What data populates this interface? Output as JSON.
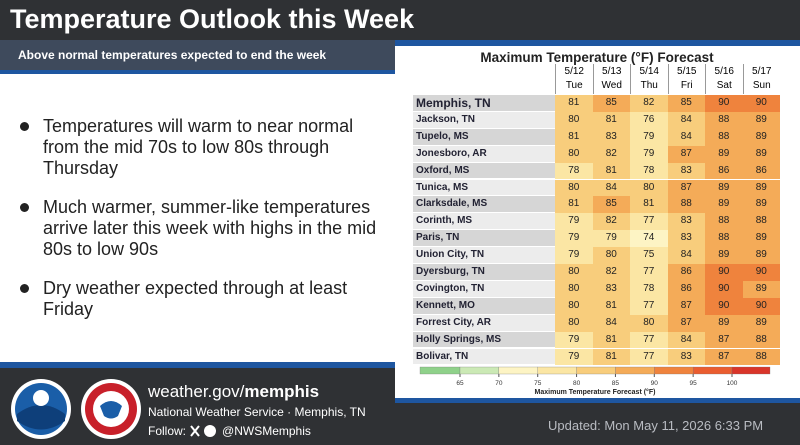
{
  "header": {
    "title": "Temperature Outlook this Week",
    "subtitle": "Above normal temperatures expected to end the week"
  },
  "bullets": [
    "Temperatures will warm to near normal from the mid 70s to low 80s through Thursday",
    "Much warmer, summer-like temperatures arrive later this week with highs in the mid 80s to low 90s",
    "Dry weather expected through at least Friday"
  ],
  "table": {
    "title": "Maximum Temperature (°F) Forecast",
    "columns": [
      {
        "date": "5/12",
        "day": "Tue"
      },
      {
        "date": "5/13",
        "day": "Wed"
      },
      {
        "date": "5/14",
        "day": "Thu"
      },
      {
        "date": "5/15",
        "day": "Fri"
      },
      {
        "date": "5/16",
        "day": "Sat"
      },
      {
        "date": "5/17",
        "day": "Sun"
      }
    ],
    "rows": [
      {
        "city": "Memphis, TN",
        "values": [
          81,
          85,
          82,
          85,
          90,
          90
        ]
      },
      {
        "city": "Jackson, TN",
        "values": [
          80,
          81,
          76,
          84,
          88,
          89
        ]
      },
      {
        "city": "Tupelo, MS",
        "values": [
          81,
          83,
          79,
          84,
          88,
          89
        ]
      },
      {
        "city": "Jonesboro, AR",
        "values": [
          80,
          82,
          79,
          87,
          89,
          89
        ]
      },
      {
        "city": "Oxford, MS",
        "values": [
          78,
          81,
          78,
          83,
          86,
          86
        ]
      },
      {
        "city": "Tunica, MS",
        "values": [
          80,
          84,
          80,
          87,
          89,
          89
        ]
      },
      {
        "city": "Clarksdale, MS",
        "values": [
          81,
          85,
          81,
          88,
          89,
          89
        ]
      },
      {
        "city": "Corinth, MS",
        "values": [
          79,
          82,
          77,
          83,
          88,
          88
        ]
      },
      {
        "city": "Paris, TN",
        "values": [
          79,
          79,
          74,
          83,
          88,
          89
        ]
      },
      {
        "city": "Union City, TN",
        "values": [
          79,
          80,
          75,
          84,
          89,
          89
        ]
      },
      {
        "city": "Dyersburg, TN",
        "values": [
          80,
          82,
          77,
          86,
          90,
          90
        ]
      },
      {
        "city": "Covington, TN",
        "values": [
          80,
          83,
          78,
          86,
          90,
          89
        ]
      },
      {
        "city": "Kennett, MO",
        "values": [
          80,
          81,
          77,
          87,
          90,
          90
        ]
      },
      {
        "city": "Forrest City, AR",
        "values": [
          80,
          84,
          80,
          87,
          89,
          89
        ]
      },
      {
        "city": "Holly Springs, MS",
        "values": [
          79,
          81,
          77,
          84,
          87,
          88
        ]
      },
      {
        "city": "Bolivar, TN",
        "values": [
          79,
          81,
          77,
          83,
          87,
          88
        ]
      }
    ]
  },
  "colorbar": {
    "ticks": [
      65,
      70,
      75,
      80,
      85,
      90,
      95,
      100
    ],
    "colors": [
      "#8fd18a",
      "#cbe9b5",
      "#fdf4c4",
      "#fbe6a4",
      "#f8cd7c",
      "#f4ab58",
      "#ef833d",
      "#ea5d30",
      "#d9352a"
    ],
    "caption": "Maximum Temperature Forecast (°F)"
  },
  "footer": {
    "url_prefix": "weather.gov/",
    "url_office": "memphis",
    "agency": "National Weather Service · Memphis, TN",
    "follow": "Follow:",
    "handle": "@NWSMemphis",
    "updated": "Updated: Mon May 11, 2026 6:33 PM"
  }
}
